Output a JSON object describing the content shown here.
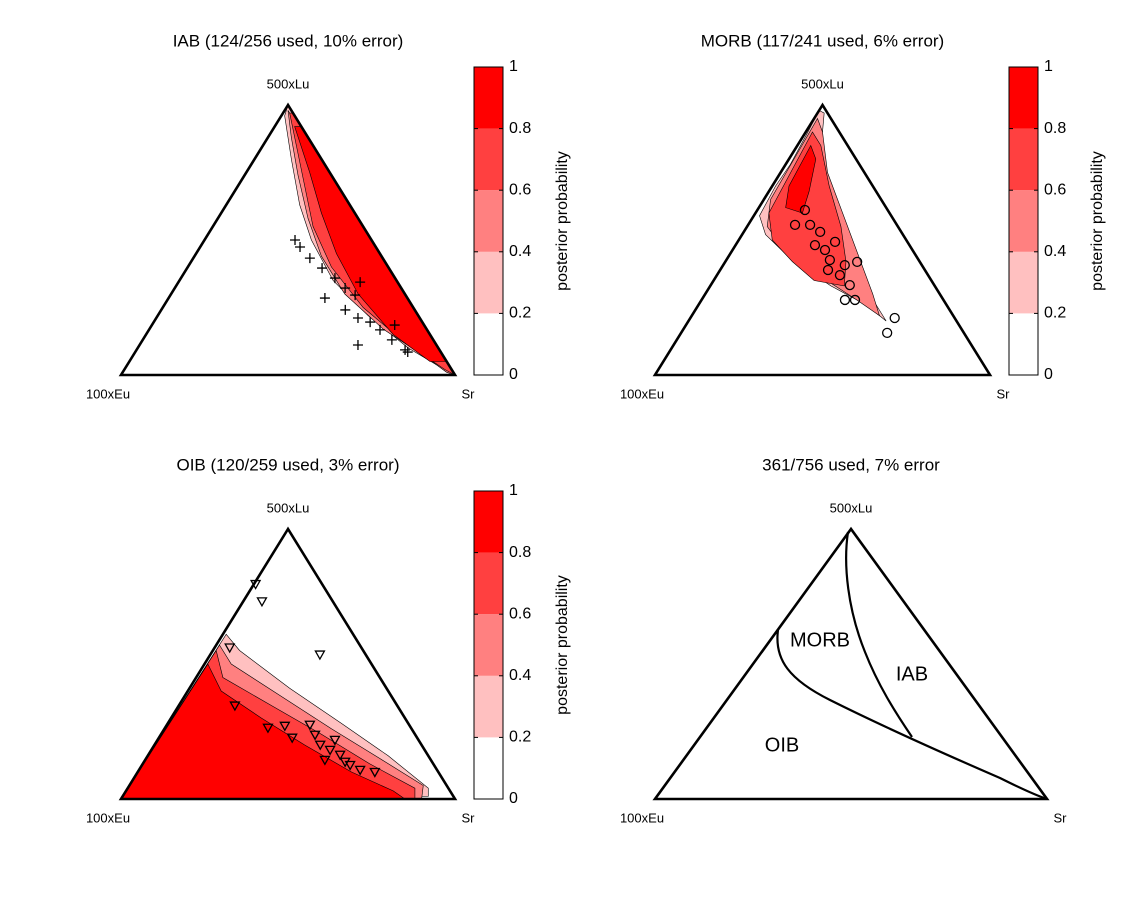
{
  "chart_data": [
    {
      "type": "ternary",
      "title": "IAB (124/256 used, 10% error)",
      "vertex_labels": {
        "top": "500xLu",
        "left": "100xEu",
        "right": "Sr"
      },
      "marker": "plus",
      "points": {
        "lu": [
          0.5,
          0.474,
          0.433,
          0.396,
          0.359,
          0.322,
          0.285,
          0.296,
          0.344,
          0.211,
          0.196,
          0.167,
          0.185,
          0.13,
          0.085,
          0.111,
          0.241,
          0.093
        ],
        "sr": [
          0.271,
          0.299,
          0.349,
          0.404,
          0.461,
          0.51,
          0.468,
          0.553,
          0.544,
          0.604,
          0.648,
          0.692,
          0.727,
          0.746,
          0.816,
          0.654,
          0.551,
          0.804
        ]
      },
      "contours": [
        {
          "level": 0.2,
          "lu": [
            1,
            0.96,
            0.8,
            0.63,
            0.5,
            0.35,
            0.22,
            0.1,
            0.03,
            0
          ],
          "sr": [
            0,
            0.01,
            0.11,
            0.22,
            0.32,
            0.46,
            0.63,
            0.81,
            0.94,
            1
          ]
        },
        {
          "level": 0.4,
          "lu": [
            0.98,
            0.88,
            0.74,
            0.58,
            0.44,
            0.3,
            0.17,
            0.06,
            0.01,
            0
          ],
          "sr": [
            0.01,
            0.07,
            0.16,
            0.27,
            0.38,
            0.52,
            0.7,
            0.89,
            0.97,
            1
          ]
        },
        {
          "level": 0.6,
          "lu": [
            0.97,
            0.85,
            0.7,
            0.55,
            0.4,
            0.25,
            0.12,
            0.02,
            0,
            0.03,
            0.97
          ],
          "sr": [
            0.02,
            0.1,
            0.2,
            0.3,
            0.43,
            0.6,
            0.79,
            0.96,
            1,
            0.97,
            0.03
          ]
        },
        {
          "level": 0.8,
          "lu": [
            0.92,
            0.75,
            0.6,
            0.45,
            0.3,
            0.15,
            0.05,
            0.05,
            0.92
          ],
          "sr": [
            0.06,
            0.19,
            0.3,
            0.42,
            0.56,
            0.74,
            0.9,
            0.95,
            0.08
          ]
        }
      ],
      "colorbar": {
        "label": "posterior probability",
        "lim": [
          0,
          1
        ],
        "ticks": [
          0,
          0.2,
          0.4,
          0.6,
          0.8,
          1
        ],
        "colors": [
          "#ffffff",
          "#ffc0c0",
          "#ff8080",
          "#ff4040",
          "#ff0000"
        ]
      }
    },
    {
      "type": "ternary",
      "title": "MORB (117/241 used, 6% error)",
      "vertex_labels": {
        "top": "500xLu",
        "left": "100xEu",
        "right": "Sr"
      },
      "marker": "circle",
      "points": {
        "lu": [
          0.611,
          0.556,
          0.556,
          0.53,
          0.481,
          0.463,
          0.493,
          0.426,
          0.407,
          0.37,
          0.333,
          0.278,
          0.278,
          0.419,
          0.389,
          0.211,
          0.156
        ],
        "sr": [
          0.142,
          0.14,
          0.185,
          0.228,
          0.237,
          0.276,
          0.291,
          0.309,
          0.363,
          0.367,
          0.415,
          0.458,
          0.428,
          0.394,
          0.322,
          0.61,
          0.615
        ]
      },
      "contours": [
        {
          "level": 0.2,
          "lu": [
            0.98,
            0.89,
            0.78,
            0.7,
            0.59,
            0.52,
            0.43,
            0.33,
            0.26,
            0.2,
            0.23,
            0.35,
            0.5,
            0.69,
            0.83,
            0.97
          ],
          "sr": [
            0,
            0.007,
            0.014,
            0.01,
            0.017,
            0.07,
            0.19,
            0.36,
            0.5,
            0.59,
            0.56,
            0.44,
            0.32,
            0.18,
            0.08,
            0.02
          ]
        },
        {
          "level": 0.4,
          "lu": [
            0.95,
            0.8,
            0.65,
            0.55,
            0.45,
            0.36,
            0.28,
            0.22,
            0.3,
            0.45,
            0.6,
            0.75,
            0.9
          ],
          "sr": [
            0.01,
            0.015,
            0.02,
            0.06,
            0.17,
            0.32,
            0.46,
            0.56,
            0.5,
            0.38,
            0.26,
            0.14,
            0.05
          ]
        },
        {
          "level": 0.6,
          "lu": [
            0.9,
            0.75,
            0.6,
            0.5,
            0.42,
            0.35,
            0.33,
            0.42,
            0.55,
            0.7,
            0.85
          ],
          "sr": [
            0.02,
            0.03,
            0.04,
            0.1,
            0.2,
            0.3,
            0.4,
            0.36,
            0.28,
            0.17,
            0.07
          ]
        },
        {
          "level": 0.8,
          "lu": [
            0.85,
            0.7,
            0.62,
            0.6,
            0.68,
            0.8
          ],
          "sr": [
            0.04,
            0.05,
            0.08,
            0.14,
            0.12,
            0.08
          ]
        }
      ],
      "colorbar": {
        "label": "posterior probability",
        "lim": [
          0,
          1
        ],
        "ticks": [
          0,
          0.2,
          0.4,
          0.6,
          0.8,
          1
        ],
        "colors": [
          "#ffffff",
          "#ffc0c0",
          "#ff8080",
          "#ff4040",
          "#ff0000"
        ]
      }
    },
    {
      "type": "ternary",
      "title": "OIB (120/259 used, 3% error)",
      "vertex_labels": {
        "top": "500xLu",
        "left": "100xEu",
        "right": "Sr"
      },
      "marker": "triangle",
      "points": {
        "lu": [
          0.796,
          0.732,
          0.535,
          0.561,
          0.346,
          0.264,
          0.271,
          0.227,
          0.238,
          0.201,
          0.182,
          0.164,
          0.138,
          0.219,
          0.126,
          0.108,
          0.1,
          0.145,
          0.275
        ],
        "sr": [
          0.005,
          0.056,
          0.328,
          0.045,
          0.168,
          0.308,
          0.355,
          0.399,
          0.462,
          0.496,
          0.535,
          0.574,
          0.602,
          0.531,
          0.623,
          0.662,
          0.71,
          0.538,
          0.428
        ]
      },
      "contours": [
        {
          "level": 0.2,
          "lu": [
            0.61,
            0.55,
            0.41,
            0.28,
            0.16,
            0.04,
            0.01,
            0
          ],
          "sr": [
            0.01,
            0.08,
            0.3,
            0.52,
            0.72,
            0.9,
            0.915,
            0
          ]
        },
        {
          "level": 0.4,
          "lu": [
            0.57,
            0.5,
            0.38,
            0.26,
            0.15,
            0.05,
            0,
            0
          ],
          "sr": [
            0.01,
            0.08,
            0.29,
            0.5,
            0.7,
            0.88,
            0.9,
            0
          ]
        },
        {
          "level": 0.6,
          "lu": [
            0.55,
            0.45,
            0.35,
            0.24,
            0.13,
            0.04,
            0,
            0
          ],
          "sr": [
            0.01,
            0.08,
            0.27,
            0.48,
            0.68,
            0.86,
            0.88,
            0
          ]
        },
        {
          "level": 0.8,
          "lu": [
            0.5,
            0.4,
            0.3,
            0.2,
            0.1,
            0.03,
            0,
            0
          ],
          "sr": [
            0.01,
            0.1,
            0.27,
            0.45,
            0.64,
            0.8,
            0.85,
            0
          ]
        }
      ],
      "colorbar": {
        "label": "posterior probability",
        "lim": [
          0,
          1
        ],
        "ticks": [
          0,
          0.2,
          0.4,
          0.6,
          0.8,
          1
        ],
        "colors": [
          "#ffffff",
          "#ffc0c0",
          "#ff8080",
          "#ff4040",
          "#ff0000"
        ]
      }
    },
    {
      "type": "ternary",
      "title": "361/756 used, 7% error",
      "vertex_labels": {
        "top": "500xLu",
        "left": "100xEu",
        "right": "Sr"
      },
      "region_labels": [
        "MORB",
        "IAB",
        "OIB"
      ]
    }
  ]
}
